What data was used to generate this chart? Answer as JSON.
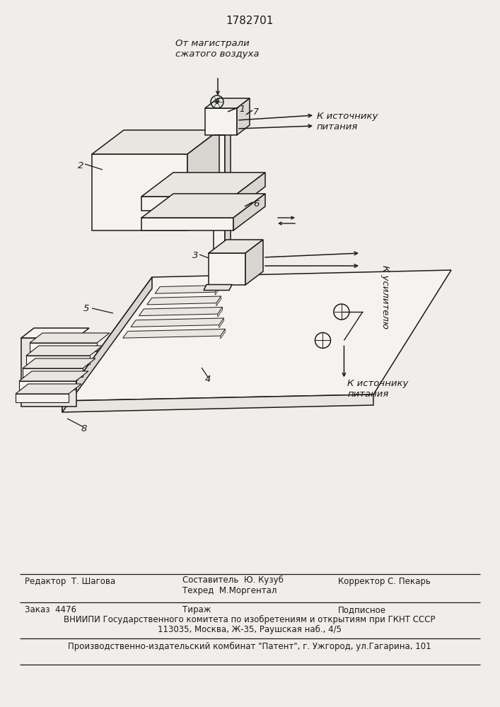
{
  "title": "1782701",
  "bg_color": "#f0eeea",
  "line_color": "#1a1a1a",
  "fill_light": "#f5f3ef",
  "fill_mid": "#e8e6e0",
  "fill_dark": "#d8d6d0",
  "label_top": "От магистрали\nсжатого воздуха",
  "label_right1": "К источнику\nпитания",
  "label6": "6",
  "label2": "2",
  "label3": "3",
  "label5": "5",
  "label4": "4",
  "label8": "8",
  "label1": "1",
  "label7": "7",
  "label_amplifier": "К усилителю",
  "label_power_bottom": "К источнику\nпитания",
  "editor_label": "Редактор  Т. Шагова",
  "compiler_label": "Составитель  Ю. Кузуб",
  "techred_label": "Техред  М.Моргентал",
  "corrector_label": "Корректор С. Пекарь",
  "order_label": "Заказ  4476",
  "tirazh_label": "Тираж",
  "podpisnoe_label": "Подписное",
  "vniipи1": "ВНИИПИ Государственного комитета по изобретениям и открытиям при ГКНТ СССР",
  "vniipи2": "113035, Москва, Ж-35, Раушская наб., 4/5",
  "factory": "Производственно-издательский комбинат \"Патент\", г. Ужгород, ул.Гагарина, 101"
}
